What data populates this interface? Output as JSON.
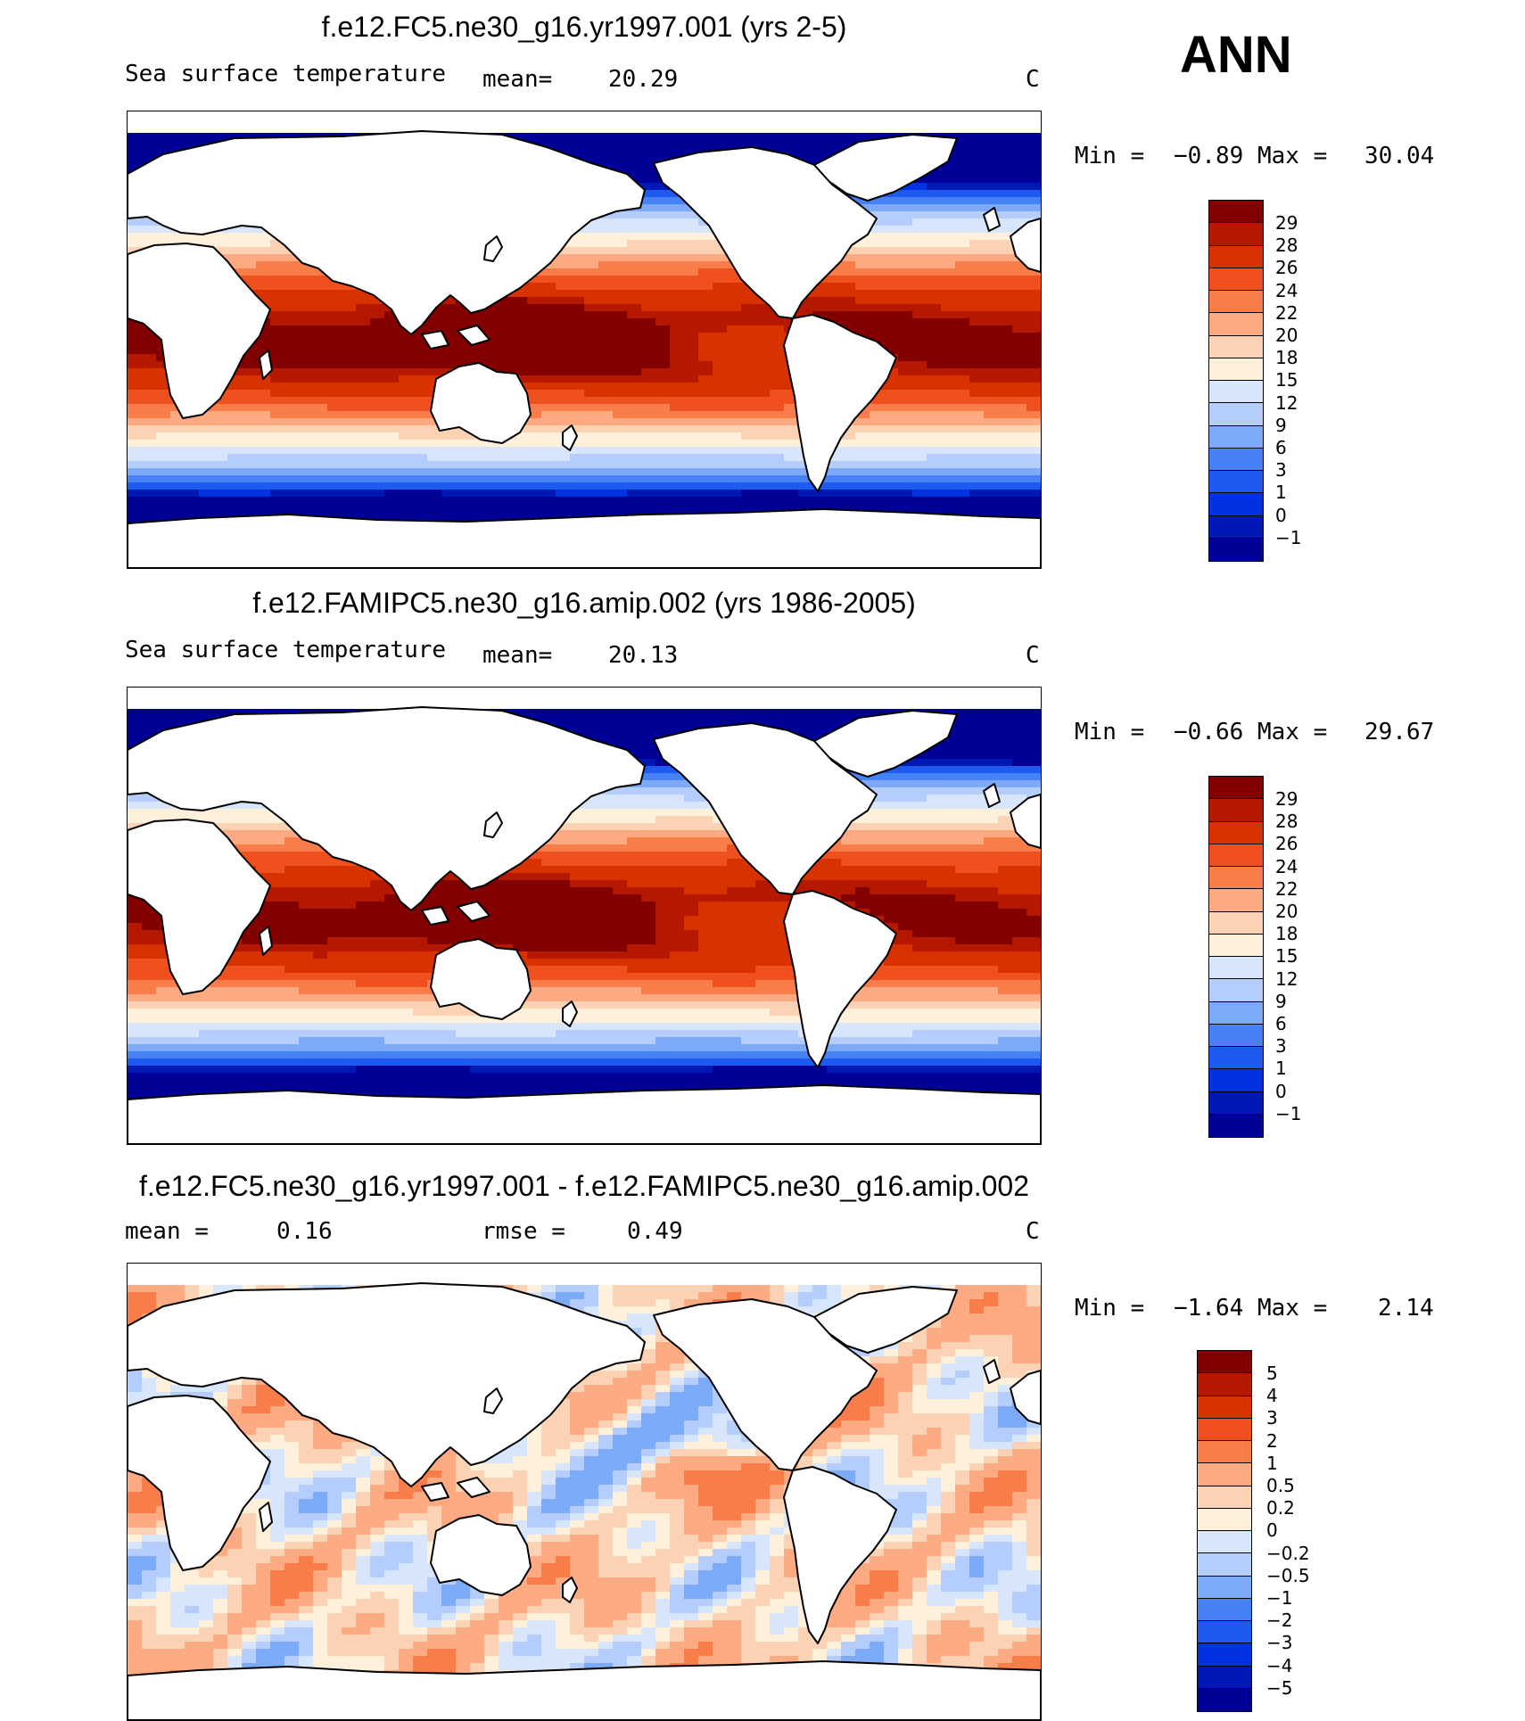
{
  "season": "ANN",
  "colors": {
    "sst": [
      "#000096",
      "#0019b4",
      "#0032e1",
      "#1e5af0",
      "#4682f5",
      "#7daaf7",
      "#b4cdfa",
      "#d7e6fa",
      "#fff0dc",
      "#fcd2b4",
      "#fbaa82",
      "#f87d4b",
      "#f0501e",
      "#d73200",
      "#b41900",
      "#820000"
    ],
    "diff": [
      "#000096",
      "#0019b4",
      "#0032e1",
      "#1e5af0",
      "#4682f5",
      "#7daaf7",
      "#b4cdfa",
      "#d7e6fa",
      "#fff0dc",
      "#fcd2b4",
      "#fbaa82",
      "#f87d4b",
      "#f0501e",
      "#d73200",
      "#b41900",
      "#820000"
    ],
    "land": "#ffffff",
    "coast": "#000000"
  },
  "panels": [
    {
      "title": "f.e12.FC5.ne30_g16.yr1997.001 (yrs 2-5)",
      "left_label": "Sea surface temperature",
      "mean_label": "mean=",
      "mean_value": "20.29",
      "units": "C",
      "min_label": "Min =",
      "min_value": "−0.89",
      "max_label": "Max =",
      "max_value": "30.04"
    },
    {
      "title": "f.e12.FAMIPC5.ne30_g16.amip.002 (yrs 1986-2005)",
      "left_label": "Sea surface temperature",
      "mean_label": "mean=",
      "mean_value": "20.13",
      "units": "C",
      "min_label": "Min =",
      "min_value": "−0.66",
      "max_label": "Max =",
      "max_value": "29.67"
    },
    {
      "title": "f.e12.FC5.ne30_g16.yr1997.001 - f.e12.FAMIPC5.ne30_g16.amip.002",
      "mean_label": "mean =",
      "mean_value": "0.16",
      "rmse_label": "rmse =",
      "rmse_value": "0.49",
      "units": "C",
      "min_label": "Min =",
      "min_value": "−1.64",
      "max_label": "Max =",
      "max_value": "2.14"
    }
  ],
  "chart_data": [
    {
      "type": "heatmap",
      "title": "f.e12.FC5.ne30_g16.yr1997.001 (yrs 2-5)",
      "variable": "Sea surface temperature",
      "units": "C",
      "mean": 20.29,
      "min": -0.89,
      "max": 30.04,
      "colorbar_levels": [
        29,
        28,
        26,
        24,
        22,
        20,
        18,
        15,
        12,
        9,
        6,
        3,
        1,
        0,
        -1
      ]
    },
    {
      "type": "heatmap",
      "title": "f.e12.FAMIPC5.ne30_g16.amip.002 (yrs 1986-2005)",
      "variable": "Sea surface temperature",
      "units": "C",
      "mean": 20.13,
      "min": -0.66,
      "max": 29.67,
      "colorbar_levels": [
        29,
        28,
        26,
        24,
        22,
        20,
        18,
        15,
        12,
        9,
        6,
        3,
        1,
        0,
        -1
      ]
    },
    {
      "type": "heatmap",
      "title": "f.e12.FC5.ne30_g16.yr1997.001 - f.e12.FAMIPC5.ne30_g16.amip.002",
      "units": "C",
      "mean": 0.16,
      "rmse": 0.49,
      "min": -1.64,
      "max": 2.14,
      "colorbar_levels": [
        5,
        4,
        3,
        2,
        1,
        0.5,
        0.2,
        0,
        -0.2,
        -0.5,
        -1,
        -2,
        -3,
        -4,
        -5
      ]
    }
  ],
  "colorbar_labels": {
    "sst": [
      "29",
      "28",
      "26",
      "24",
      "22",
      "20",
      "18",
      "15",
      "12",
      "9",
      "6",
      "3",
      "1",
      "0",
      "−1"
    ],
    "diff": [
      "5",
      "4",
      "3",
      "2",
      "1",
      "0.5",
      "0.2",
      "0",
      "−0.2",
      "−0.5",
      "−1",
      "−2",
      "−3",
      "−4",
      "−5"
    ]
  }
}
